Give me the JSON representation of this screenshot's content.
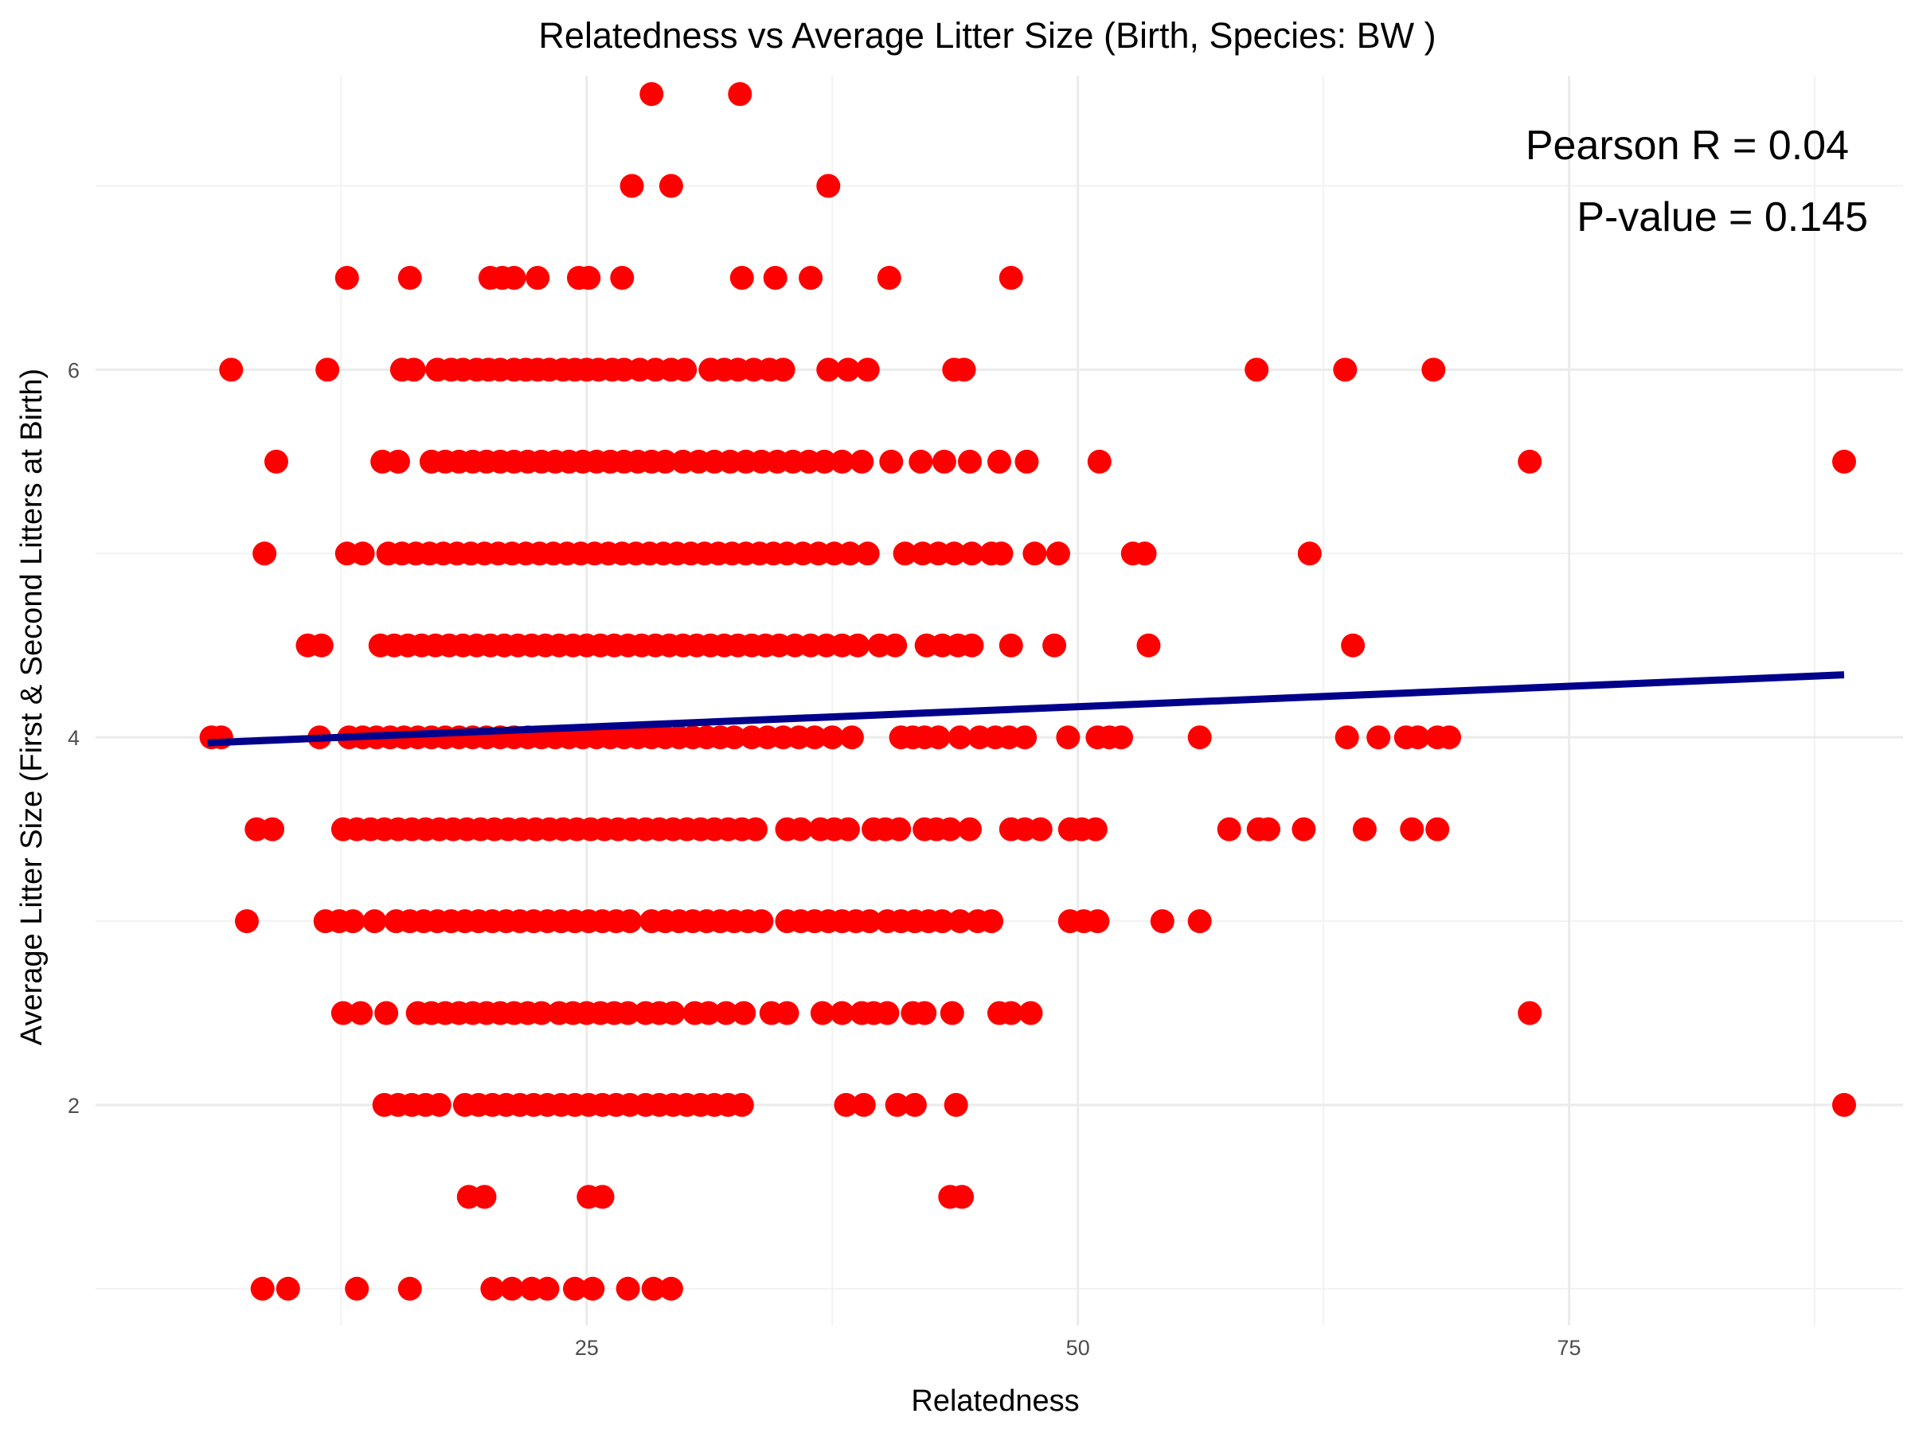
{
  "chart_data": {
    "type": "scatter",
    "title": "Relatedness vs Average Litter Size (Birth, Species: BW )",
    "xlabel": "Relatedness",
    "ylabel": "Average Litter Size (First & Second Litters at Birth)",
    "xlim": [
      0,
      92
    ],
    "ylim": [
      0.8,
      7.6
    ],
    "x_ticks": [
      25,
      50,
      75
    ],
    "y_ticks": [
      2,
      4,
      6
    ],
    "grid": true,
    "point_color": "#ff0000",
    "trend_color": "#00008b",
    "trend_line": {
      "x": [
        5.7,
        89
      ],
      "y": [
        3.97,
        4.34
      ]
    },
    "annotations": [
      "Pearson R = 0.04",
      "P-value = 0.145"
    ],
    "rows": [
      {
        "y": 7.5,
        "x": [
          28.3,
          32.8
        ]
      },
      {
        "y": 7.0,
        "x": [
          27.3,
          29.3,
          37.3
        ]
      },
      {
        "y": 6.5,
        "x": [
          12.8,
          16.0,
          20.1,
          20.7,
          21.3,
          22.5,
          24.6,
          25.1,
          26.8,
          32.9,
          34.6,
          36.4,
          40.4,
          46.6
        ]
      },
      {
        "y": 6.0,
        "x": [
          6.9,
          11.8,
          15.6,
          16.2,
          17.4,
          18.1,
          18.7,
          19.4,
          20.0,
          20.6,
          21.3,
          21.9,
          22.5,
          23.1,
          23.8,
          24.4,
          25.0,
          25.6,
          26.3,
          26.9,
          27.7,
          28.5,
          29.3,
          30.0,
          31.3,
          32.0,
          32.7,
          33.5,
          34.3,
          35.0,
          37.3,
          38.3,
          39.3,
          43.7,
          44.2,
          59.1,
          63.6,
          68.1
        ]
      },
      {
        "y": 5.5,
        "x": [
          9.2,
          14.6,
          15.4,
          17.1,
          17.8,
          18.5,
          19.2,
          19.9,
          20.6,
          21.3,
          22.0,
          22.7,
          23.4,
          24.1,
          24.8,
          25.5,
          26.2,
          26.9,
          27.6,
          28.3,
          29.0,
          29.9,
          30.7,
          31.5,
          32.3,
          33.1,
          33.9,
          34.7,
          35.5,
          36.3,
          37.1,
          38.0,
          39.0,
          40.5,
          42.0,
          43.2,
          44.5,
          46.0,
          47.4,
          51.1,
          73.0,
          89.0
        ]
      },
      {
        "y": 5.0,
        "x": [
          8.6,
          12.8,
          13.6,
          14.9,
          15.6,
          16.3,
          17.0,
          17.7,
          18.4,
          19.1,
          19.8,
          20.5,
          21.2,
          21.9,
          22.6,
          23.3,
          24.0,
          24.7,
          25.4,
          26.1,
          26.8,
          27.5,
          28.2,
          28.9,
          29.6,
          30.3,
          31.0,
          31.7,
          32.4,
          33.1,
          33.8,
          34.5,
          35.2,
          36.0,
          36.8,
          37.6,
          38.4,
          39.3,
          41.2,
          42.1,
          42.9,
          43.7,
          44.6,
          45.6,
          46.1,
          47.8,
          49.0,
          52.8,
          53.4,
          61.8
        ]
      },
      {
        "y": 4.5,
        "x": [
          10.8,
          11.5,
          14.5,
          15.2,
          15.9,
          16.6,
          17.3,
          18.0,
          18.7,
          19.4,
          20.1,
          20.8,
          21.5,
          22.2,
          22.9,
          23.6,
          24.3,
          25.0,
          25.7,
          26.4,
          27.1,
          27.8,
          28.5,
          29.2,
          29.9,
          30.6,
          31.3,
          32.0,
          32.7,
          33.4,
          34.1,
          34.8,
          35.6,
          36.4,
          37.2,
          38.0,
          38.8,
          39.9,
          40.7,
          42.3,
          43.1,
          43.9,
          44.6,
          46.6,
          48.8,
          53.6,
          64.0
        ]
      },
      {
        "y": 4.0,
        "x": [
          5.9,
          6.4,
          11.4,
          12.9,
          13.6,
          14.3,
          15.0,
          15.7,
          16.4,
          17.1,
          17.8,
          18.5,
          19.2,
          19.9,
          20.6,
          21.3,
          22.0,
          22.7,
          23.4,
          24.1,
          24.8,
          25.5,
          26.2,
          26.9,
          27.6,
          28.3,
          29.0,
          29.7,
          30.4,
          31.1,
          31.8,
          32.5,
          33.4,
          34.2,
          35.0,
          35.8,
          36.6,
          37.5,
          38.5,
          41.0,
          41.6,
          42.2,
          42.9,
          44.0,
          45.0,
          45.8,
          46.5,
          47.3,
          49.5,
          51.0,
          51.6,
          52.2,
          56.2,
          63.7,
          65.3,
          66.7,
          67.3,
          68.3,
          68.9
        ]
      },
      {
        "y": 3.5,
        "x": [
          8.2,
          9.0,
          12.6,
          13.3,
          14.0,
          14.7,
          15.4,
          16.1,
          16.8,
          17.5,
          18.2,
          18.9,
          19.6,
          20.3,
          21.0,
          21.7,
          22.4,
          23.1,
          23.8,
          24.5,
          25.2,
          25.9,
          26.6,
          27.3,
          28.0,
          28.7,
          29.4,
          30.1,
          30.8,
          31.5,
          32.2,
          32.9,
          33.6,
          35.2,
          35.9,
          36.9,
          37.6,
          38.3,
          39.6,
          40.2,
          40.9,
          42.2,
          42.8,
          43.5,
          44.5,
          46.6,
          47.3,
          48.1,
          49.6,
          50.2,
          50.9,
          57.7,
          59.2,
          59.7,
          61.5,
          64.6,
          67.0,
          68.3
        ]
      },
      {
        "y": 3.0,
        "x": [
          7.7,
          11.7,
          12.4,
          13.1,
          14.2,
          15.3,
          16.0,
          16.7,
          17.4,
          18.1,
          18.8,
          19.5,
          20.2,
          20.9,
          21.6,
          22.3,
          23.0,
          23.7,
          24.4,
          25.1,
          25.8,
          26.5,
          27.2,
          28.3,
          29.0,
          29.7,
          30.4,
          31.1,
          31.8,
          32.5,
          33.2,
          33.9,
          35.2,
          35.9,
          36.6,
          37.3,
          38.0,
          38.7,
          39.4,
          40.3,
          41.0,
          41.7,
          42.4,
          43.1,
          44.0,
          44.9,
          45.6,
          49.6,
          50.3,
          51.0,
          54.3,
          56.2
        ]
      },
      {
        "y": 2.5,
        "x": [
          12.6,
          13.5,
          14.8,
          16.4,
          17.1,
          17.8,
          18.5,
          19.2,
          19.9,
          20.6,
          21.3,
          22.0,
          22.7,
          23.6,
          24.3,
          25.0,
          25.7,
          26.4,
          27.1,
          28.0,
          28.7,
          29.4,
          30.5,
          31.2,
          32.1,
          33.0,
          34.4,
          35.2,
          37.0,
          38.0,
          39.0,
          39.6,
          40.3,
          41.6,
          42.2,
          43.6,
          46.0,
          46.6,
          47.6,
          73.0
        ]
      },
      {
        "y": 2.0,
        "x": [
          14.7,
          15.4,
          16.1,
          16.8,
          17.5,
          18.8,
          19.5,
          20.2,
          20.9,
          21.6,
          22.3,
          23.0,
          23.7,
          24.4,
          25.1,
          25.8,
          26.5,
          27.2,
          28.0,
          28.7,
          29.4,
          30.1,
          30.8,
          31.5,
          32.2,
          32.9,
          38.2,
          39.1,
          40.8,
          41.7,
          43.8,
          89.0
        ]
      },
      {
        "y": 1.5,
        "x": [
          19.0,
          19.8,
          25.1,
          25.8,
          43.5,
          44.1
        ]
      },
      {
        "y": 1.0,
        "x": [
          8.5,
          9.8,
          13.3,
          16.0,
          20.2,
          21.2,
          22.2,
          23.0,
          24.4,
          25.3,
          27.1,
          28.4,
          29.3
        ]
      }
    ]
  }
}
